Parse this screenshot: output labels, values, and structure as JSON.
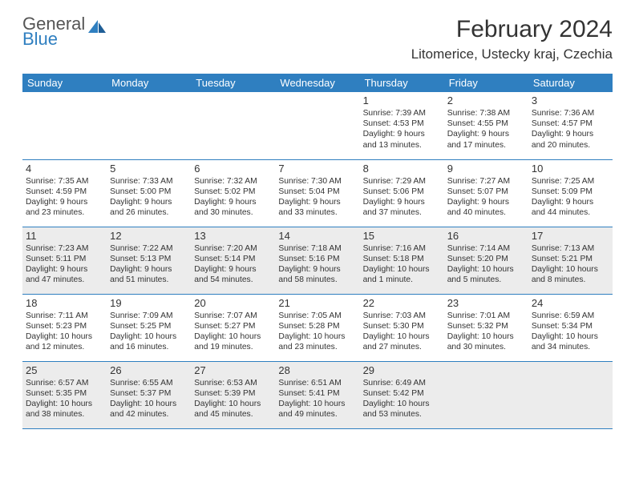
{
  "logo": {
    "line1": "General",
    "line2": "Blue",
    "accent": "#2f7fc0"
  },
  "title": "February 2024",
  "subtitle": "Litomerice, Ustecky kraj, Czechia",
  "day_headers": [
    "Sunday",
    "Monday",
    "Tuesday",
    "Wednesday",
    "Thursday",
    "Friday",
    "Saturday"
  ],
  "header_bg": "#2f7fc0",
  "shade_bg": "#ececec",
  "border_color": "#2f7fc0",
  "first_weekday": 4,
  "shade_rows": [
    2,
    4
  ],
  "days": [
    {
      "n": 1,
      "sr": "7:39 AM",
      "ss": "4:53 PM",
      "dl": "9 hours and 13 minutes."
    },
    {
      "n": 2,
      "sr": "7:38 AM",
      "ss": "4:55 PM",
      "dl": "9 hours and 17 minutes."
    },
    {
      "n": 3,
      "sr": "7:36 AM",
      "ss": "4:57 PM",
      "dl": "9 hours and 20 minutes."
    },
    {
      "n": 4,
      "sr": "7:35 AM",
      "ss": "4:59 PM",
      "dl": "9 hours and 23 minutes."
    },
    {
      "n": 5,
      "sr": "7:33 AM",
      "ss": "5:00 PM",
      "dl": "9 hours and 26 minutes."
    },
    {
      "n": 6,
      "sr": "7:32 AM",
      "ss": "5:02 PM",
      "dl": "9 hours and 30 minutes."
    },
    {
      "n": 7,
      "sr": "7:30 AM",
      "ss": "5:04 PM",
      "dl": "9 hours and 33 minutes."
    },
    {
      "n": 8,
      "sr": "7:29 AM",
      "ss": "5:06 PM",
      "dl": "9 hours and 37 minutes."
    },
    {
      "n": 9,
      "sr": "7:27 AM",
      "ss": "5:07 PM",
      "dl": "9 hours and 40 minutes."
    },
    {
      "n": 10,
      "sr": "7:25 AM",
      "ss": "5:09 PM",
      "dl": "9 hours and 44 minutes."
    },
    {
      "n": 11,
      "sr": "7:23 AM",
      "ss": "5:11 PM",
      "dl": "9 hours and 47 minutes."
    },
    {
      "n": 12,
      "sr": "7:22 AM",
      "ss": "5:13 PM",
      "dl": "9 hours and 51 minutes."
    },
    {
      "n": 13,
      "sr": "7:20 AM",
      "ss": "5:14 PM",
      "dl": "9 hours and 54 minutes."
    },
    {
      "n": 14,
      "sr": "7:18 AM",
      "ss": "5:16 PM",
      "dl": "9 hours and 58 minutes."
    },
    {
      "n": 15,
      "sr": "7:16 AM",
      "ss": "5:18 PM",
      "dl": "10 hours and 1 minute."
    },
    {
      "n": 16,
      "sr": "7:14 AM",
      "ss": "5:20 PM",
      "dl": "10 hours and 5 minutes."
    },
    {
      "n": 17,
      "sr": "7:13 AM",
      "ss": "5:21 PM",
      "dl": "10 hours and 8 minutes."
    },
    {
      "n": 18,
      "sr": "7:11 AM",
      "ss": "5:23 PM",
      "dl": "10 hours and 12 minutes."
    },
    {
      "n": 19,
      "sr": "7:09 AM",
      "ss": "5:25 PM",
      "dl": "10 hours and 16 minutes."
    },
    {
      "n": 20,
      "sr": "7:07 AM",
      "ss": "5:27 PM",
      "dl": "10 hours and 19 minutes."
    },
    {
      "n": 21,
      "sr": "7:05 AM",
      "ss": "5:28 PM",
      "dl": "10 hours and 23 minutes."
    },
    {
      "n": 22,
      "sr": "7:03 AM",
      "ss": "5:30 PM",
      "dl": "10 hours and 27 minutes."
    },
    {
      "n": 23,
      "sr": "7:01 AM",
      "ss": "5:32 PM",
      "dl": "10 hours and 30 minutes."
    },
    {
      "n": 24,
      "sr": "6:59 AM",
      "ss": "5:34 PM",
      "dl": "10 hours and 34 minutes."
    },
    {
      "n": 25,
      "sr": "6:57 AM",
      "ss": "5:35 PM",
      "dl": "10 hours and 38 minutes."
    },
    {
      "n": 26,
      "sr": "6:55 AM",
      "ss": "5:37 PM",
      "dl": "10 hours and 42 minutes."
    },
    {
      "n": 27,
      "sr": "6:53 AM",
      "ss": "5:39 PM",
      "dl": "10 hours and 45 minutes."
    },
    {
      "n": 28,
      "sr": "6:51 AM",
      "ss": "5:41 PM",
      "dl": "10 hours and 49 minutes."
    },
    {
      "n": 29,
      "sr": "6:49 AM",
      "ss": "5:42 PM",
      "dl": "10 hours and 53 minutes."
    }
  ],
  "labels": {
    "sunrise": "Sunrise:",
    "sunset": "Sunset:",
    "daylight": "Daylight:"
  }
}
